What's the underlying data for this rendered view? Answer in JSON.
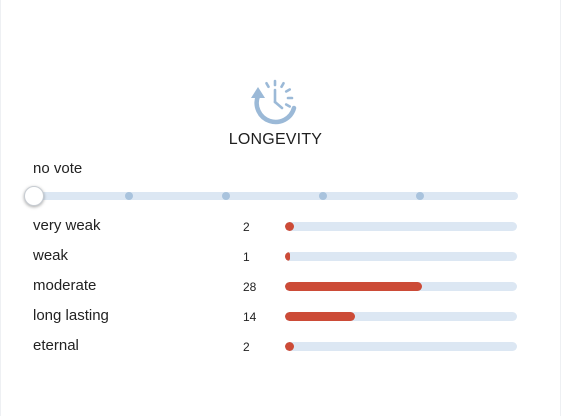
{
  "header": {
    "icon": "clock-history-icon",
    "title": "LONGEVITY"
  },
  "vote": {
    "label": "no vote",
    "steps": 5,
    "selected_index": 0
  },
  "colors": {
    "accent": "#cc4b37",
    "track": "#dce7f3",
    "tick": "#a9c3dd",
    "icon": "#9bb9d7"
  },
  "results": [
    {
      "label": "very weak",
      "count": "2",
      "fraction": 0.04
    },
    {
      "label": "weak",
      "count": "1",
      "fraction": 0.02
    },
    {
      "label": "moderate",
      "count": "28",
      "fraction": 0.59
    },
    {
      "label": "long lasting",
      "count": "14",
      "fraction": 0.3
    },
    {
      "label": "eternal",
      "count": "2",
      "fraction": 0.04
    }
  ]
}
